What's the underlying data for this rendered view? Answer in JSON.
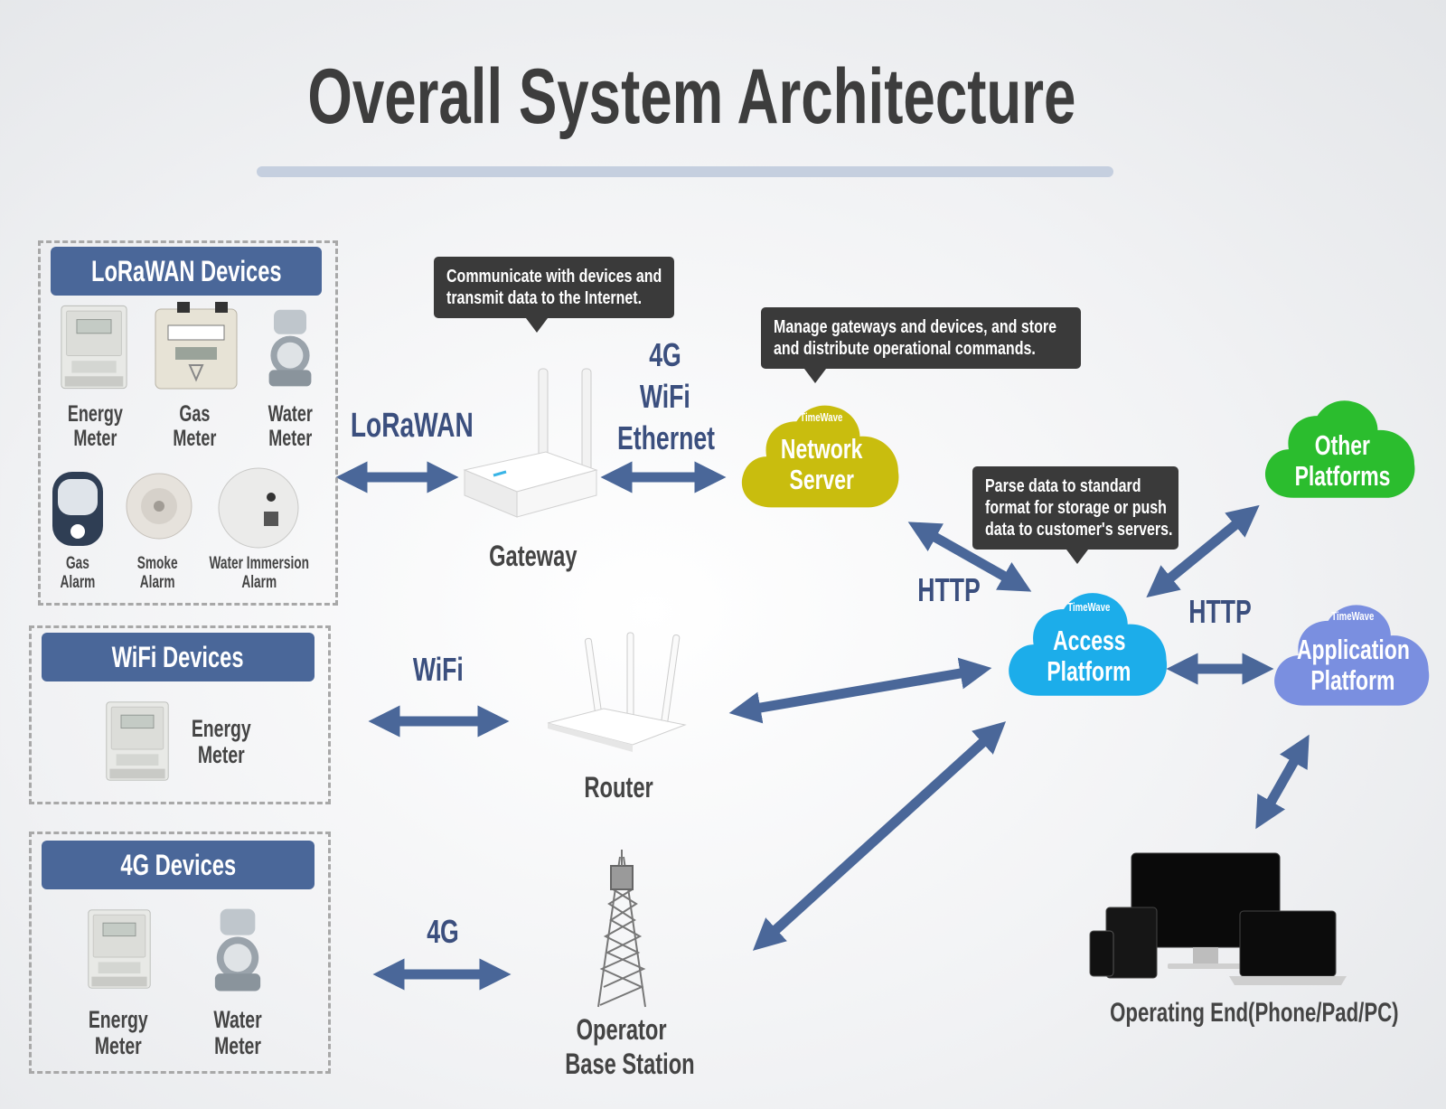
{
  "title": "Overall System Architecture",
  "groups": {
    "lorawan": {
      "header": "LoRaWAN Devices",
      "devices": [
        "Energy\nMeter",
        "Gas\nMeter",
        "Water\nMeter",
        "Gas\nAlarm",
        "Smoke\nAlarm",
        "Water Immersion\nAlarm"
      ]
    },
    "wifi": {
      "header": "WiFi Devices",
      "devices": [
        "Energy\nMeter"
      ]
    },
    "fourg": {
      "header": "4G Devices",
      "devices": [
        "Energy\nMeter",
        "Water\nMeter"
      ]
    }
  },
  "links": {
    "lorawan": "LoRaWAN",
    "gateway_uplink": [
      "4G",
      "WiFi",
      "Ethernet"
    ],
    "wifi": "WiFi",
    "fourg": "4G",
    "http_left": "HTTP",
    "http_right": "HTTP"
  },
  "nodes": {
    "gateway": "Gateway",
    "router": "Router",
    "base_station": [
      "Operator",
      "Base Station"
    ],
    "network_server": [
      "Network",
      "Server"
    ],
    "access_platform": [
      "Access",
      "Platform"
    ],
    "application_platform": [
      "Application",
      "Platform"
    ],
    "other_platforms": [
      "Other",
      "Platforms"
    ],
    "operating_end": "Operating End(Phone/Pad/PC)",
    "brand": "TimeWave"
  },
  "callouts": {
    "gateway": [
      "Communicate with devices and",
      "transmit data to the Internet."
    ],
    "network_server": [
      "Manage gateways and devices, and store",
      "and distribute operational commands."
    ],
    "access_platform": [
      "Parse data to standard",
      "format for storage or push",
      "data to customer's servers."
    ]
  },
  "colors": {
    "header": "#4a6799",
    "arrow": "#4a6799",
    "network_server": "#c9bd0e",
    "access_platform": "#1cadea",
    "application_platform": "#7a8fe0",
    "other_platforms": "#2bbd2e",
    "callout": "#3a3a3a"
  }
}
